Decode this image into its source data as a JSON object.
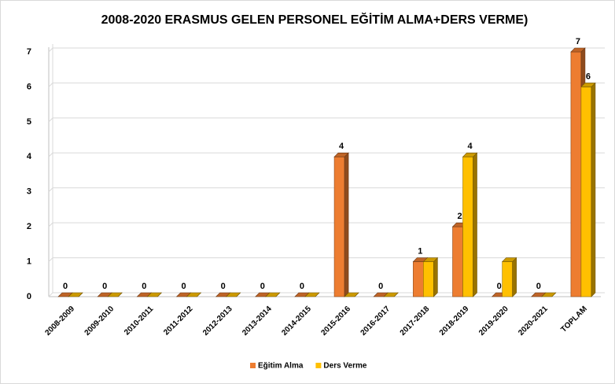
{
  "chart_data": {
    "type": "bar",
    "title": "2008-2020 ERASMUS GELEN PERSONEL EĞİTİM ALMA+DERS VERME)",
    "categories": [
      "2008-2009",
      "2009-2010",
      "2010-2011",
      "2011-2012",
      "2012-2013",
      "2013-2014",
      "2014-2015",
      "2015-2016",
      "2016-2017",
      "2017-2018",
      "2018-2019",
      "2019-2020",
      "2020-2021",
      "TOPLAM"
    ],
    "series": [
      {
        "name": "Eğitim Alma",
        "color": "#ed7d31",
        "values": [
          0,
          0,
          0,
          0,
          0,
          0,
          0,
          4,
          0,
          1,
          2,
          0,
          0,
          7
        ]
      },
      {
        "name": "Ders Verme",
        "color": "#ffc000",
        "values": [
          0,
          0,
          0,
          0,
          0,
          0,
          0,
          0,
          0,
          1,
          4,
          1,
          0,
          6
        ],
        "value_labels": [
          null,
          null,
          null,
          null,
          null,
          null,
          null,
          null,
          null,
          null,
          "4",
          null,
          null,
          "6"
        ]
      }
    ],
    "ylim": [
      0,
      7
    ],
    "yticks": [
      0,
      1,
      2,
      3,
      4,
      5,
      6,
      7
    ],
    "grid": true,
    "legend": "bottom"
  }
}
